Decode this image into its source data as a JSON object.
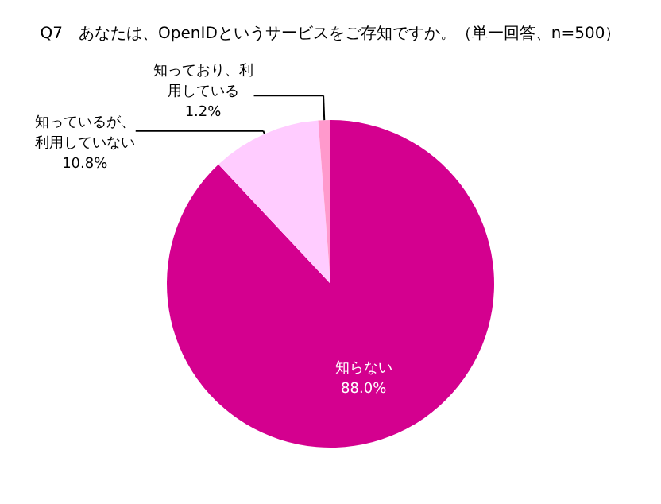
{
  "chart_data": {
    "type": "pie",
    "title": "Q7　あなたは、OpenIDというサービスをご存知ですか。（単一回答、n=500）",
    "categories": [
      "知らない",
      "知っているが、利用していない",
      "知っており、利用している"
    ],
    "values": [
      88.0,
      10.8,
      1.2
    ],
    "colors": [
      "#d4008f",
      "#ffccff",
      "#ff99cc"
    ],
    "value_labels": [
      "88.0%",
      "10.8%",
      "1.2%"
    ],
    "legend": false
  }
}
